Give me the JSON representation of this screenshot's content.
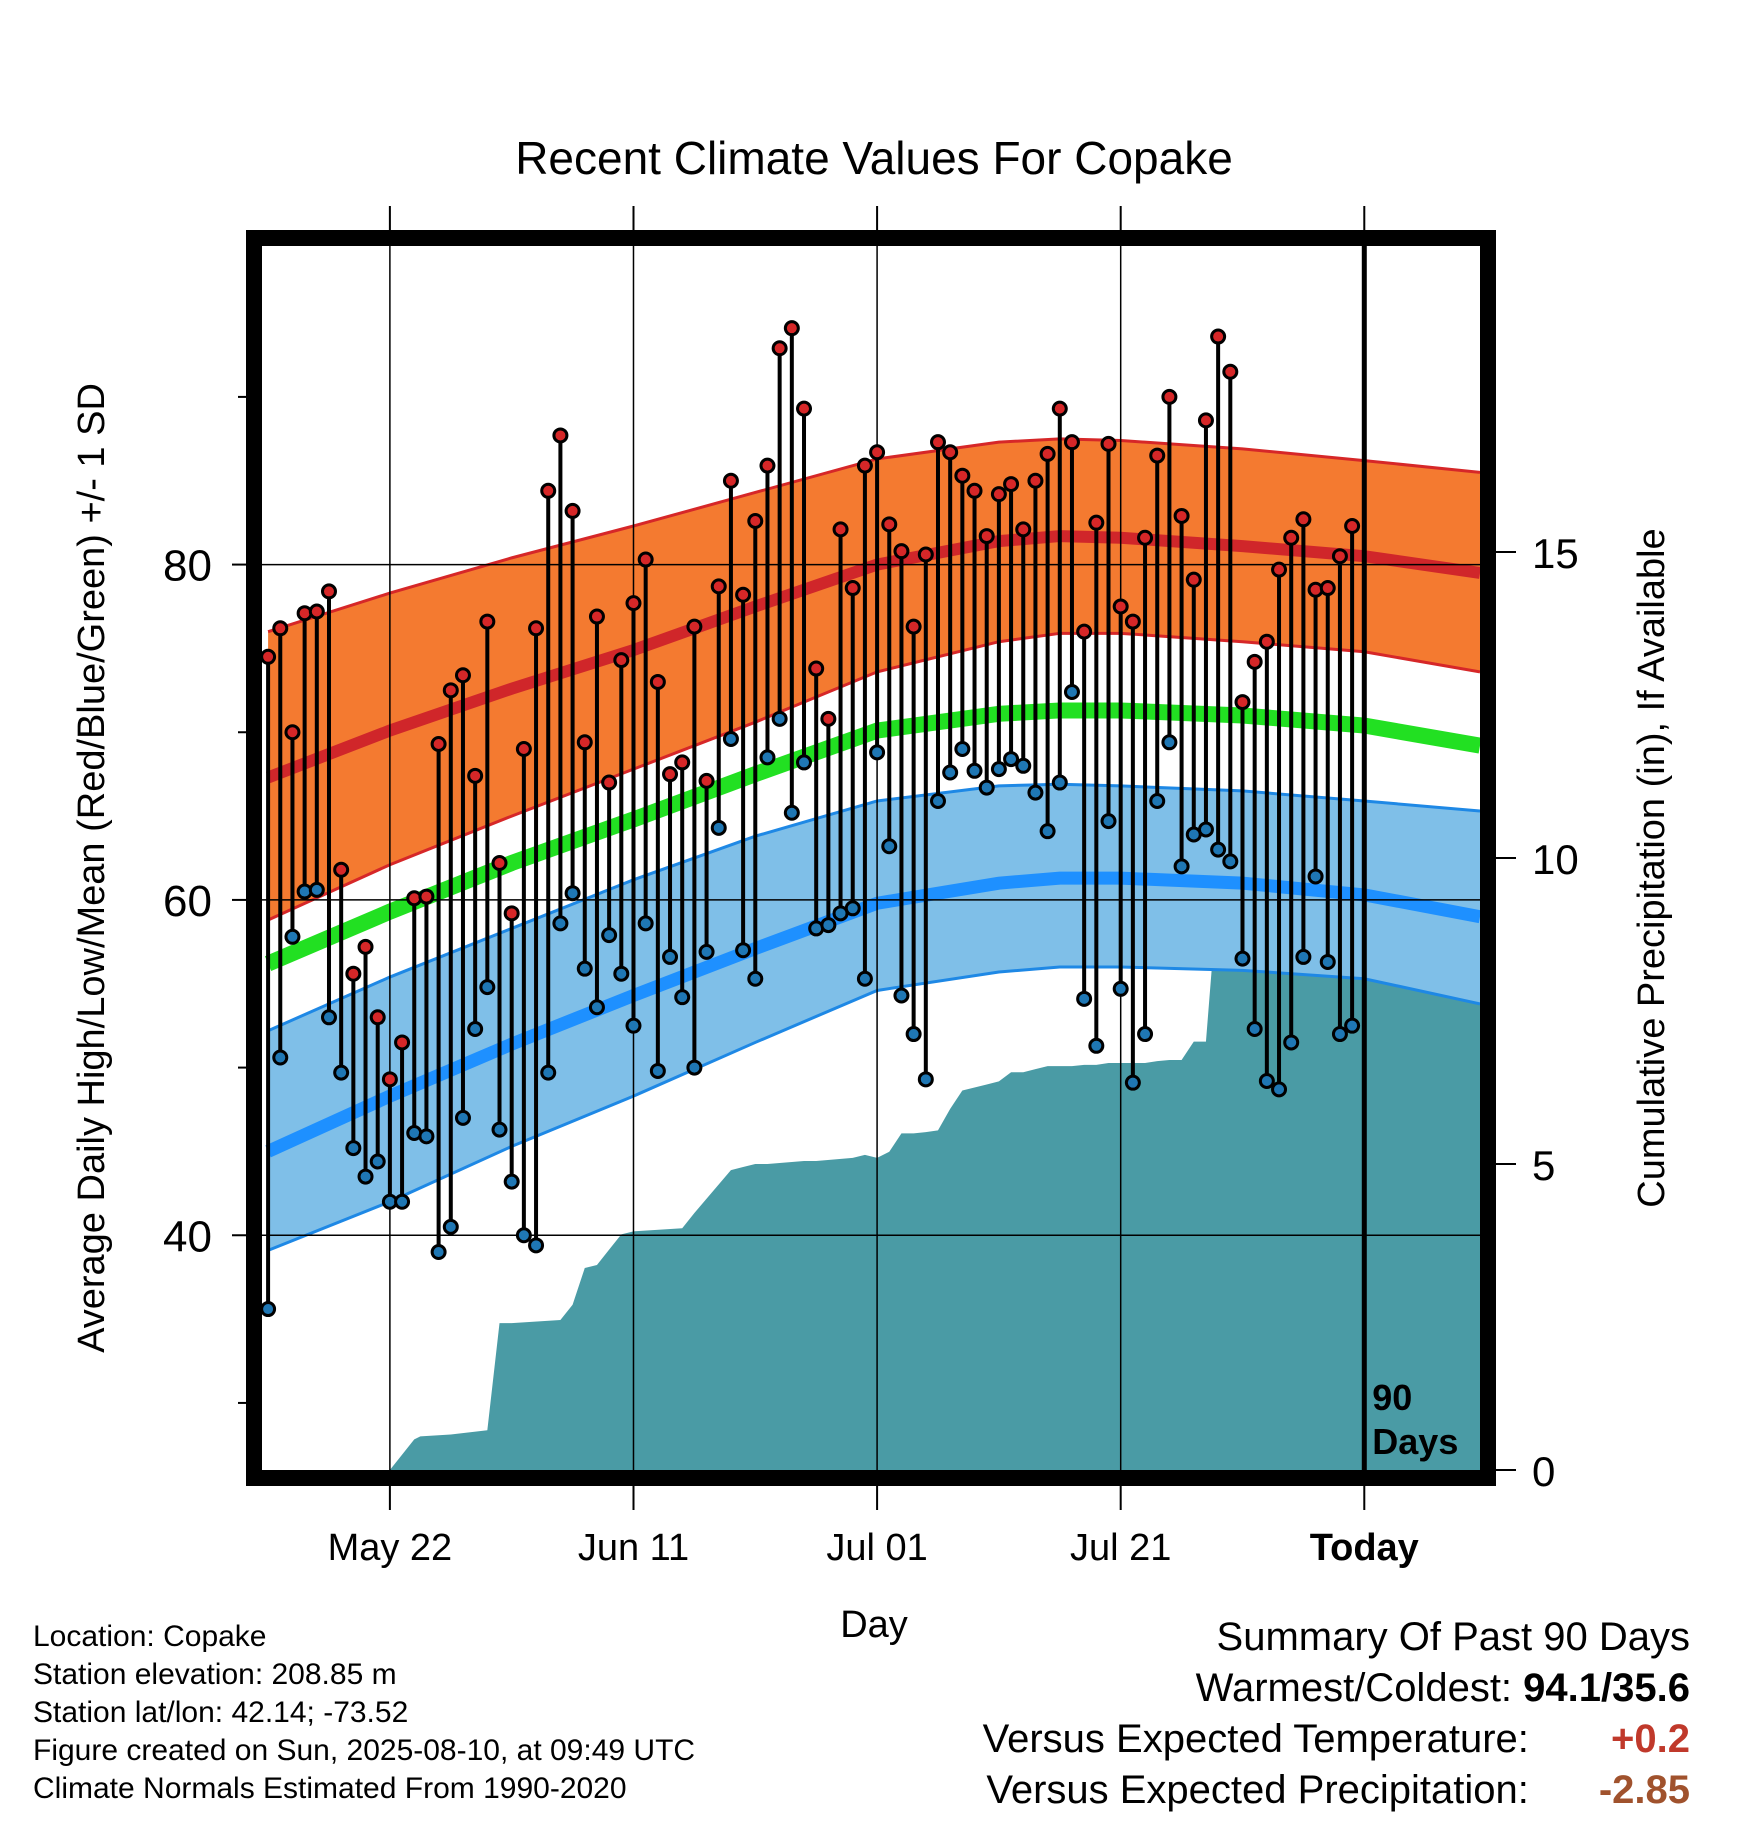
{
  "chart_data": {
    "type": "line",
    "title": "Recent Climate Values For Copake",
    "xlabel": "Day",
    "ylabel": "Average Daily High/Low/Mean (Red/Blue/Green) +/- 1 SD",
    "y2label": "Cumulative Precipitation (in), If Available",
    "xticks": [
      {
        "label": "May 22",
        "day": 10
      },
      {
        "label": "Jun 11",
        "day": 30
      },
      {
        "label": "Jul 01",
        "day": 50
      },
      {
        "label": "Jul 21",
        "day": 70
      },
      {
        "label": "Today",
        "day": 90
      }
    ],
    "today_day": 90,
    "today_note": [
      "90",
      "Days"
    ],
    "x_range": [
      -0.5,
      99.5
    ],
    "ylim": [
      26,
      99
    ],
    "y_ticks": [
      40,
      60,
      80
    ],
    "y2lim": [
      0,
      20
    ],
    "y2_ticks": [
      0,
      5,
      10,
      15
    ],
    "grid": true,
    "normals": {
      "days": [
        0,
        10,
        20,
        30,
        40,
        50,
        60,
        65,
        70,
        80,
        90,
        99.5
      ],
      "high_mean": [
        67.3,
        70.1,
        72.6,
        74.9,
        77.5,
        80.0,
        81.4,
        81.7,
        81.6,
        81.1,
        80.5,
        79.5
      ],
      "high_upper": [
        76.0,
        78.3,
        80.4,
        82.3,
        84.3,
        86.3,
        87.3,
        87.5,
        87.4,
        86.9,
        86.2,
        85.5
      ],
      "high_lower": [
        58.8,
        62.1,
        65.0,
        67.8,
        70.6,
        73.6,
        75.4,
        75.9,
        75.9,
        75.4,
        74.8,
        73.6
      ],
      "mean": [
        56.2,
        59.3,
        62.2,
        64.8,
        67.5,
        70.1,
        71.1,
        71.3,
        71.3,
        71.0,
        70.4,
        69.2
      ],
      "low_mean": [
        45.0,
        48.3,
        51.4,
        54.3,
        57.1,
        59.8,
        61.0,
        61.3,
        61.3,
        61.0,
        60.3,
        59.0
      ],
      "low_upper": [
        52.2,
        55.4,
        58.3,
        61.2,
        63.8,
        65.9,
        66.8,
        66.9,
        66.8,
        66.5,
        65.9,
        65.3
      ],
      "low_lower": [
        39.1,
        42.0,
        45.3,
        48.3,
        51.5,
        54.6,
        55.7,
        56.0,
        56.0,
        55.8,
        55.3,
        53.8
      ]
    },
    "series": [
      {
        "name": "High",
        "color": "#d62728",
        "values": [
          74.5,
          76.2,
          70.0,
          77.1,
          77.2,
          78.4,
          61.8,
          55.6,
          57.2,
          53.0,
          49.3,
          51.5,
          60.1,
          60.2,
          69.3,
          72.5,
          73.4,
          67.4,
          76.6,
          62.2,
          59.2,
          69.0,
          76.2,
          84.4,
          87.7,
          83.2,
          69.4,
          76.9,
          67.0,
          74.3,
          77.7,
          80.3,
          73.0,
          67.5,
          68.2,
          76.3,
          67.1,
          78.7,
          85.0,
          78.2,
          82.6,
          85.9,
          92.9,
          94.1,
          89.3,
          73.8,
          70.8,
          82.1,
          78.6,
          85.9,
          86.7,
          82.4,
          80.8,
          76.3,
          80.6,
          87.3,
          86.7,
          85.3,
          84.4,
          81.7,
          84.2,
          84.8,
          82.1,
          85.0,
          86.6,
          89.3,
          87.3,
          76.0,
          82.5,
          87.2,
          77.5,
          76.6,
          81.6,
          86.5,
          90.0,
          82.9,
          79.1,
          88.6,
          93.6,
          91.5,
          71.8,
          74.2,
          75.4,
          79.7,
          81.6,
          82.7,
          78.5,
          78.6,
          80.5,
          82.3
        ]
      },
      {
        "name": "Low",
        "color": "#1f77b4",
        "values": [
          35.6,
          50.6,
          57.8,
          60.5,
          60.6,
          53.0,
          49.7,
          45.2,
          43.5,
          44.4,
          42.0,
          42.0,
          46.1,
          45.9,
          39.0,
          40.5,
          47.0,
          52.3,
          54.8,
          46.3,
          43.2,
          40.0,
          39.4,
          49.7,
          58.6,
          60.4,
          55.9,
          53.6,
          57.9,
          55.6,
          52.5,
          58.6,
          49.8,
          56.6,
          54.2,
          50.0,
          56.9,
          64.3,
          69.6,
          57.0,
          55.3,
          68.5,
          70.8,
          65.2,
          68.2,
          58.3,
          58.5,
          59.2,
          59.5,
          55.3,
          68.8,
          63.2,
          54.3,
          52.0,
          49.3,
          65.9,
          67.6,
          69.0,
          67.7,
          66.7,
          67.8,
          68.4,
          68.0,
          66.4,
          64.1,
          67.0,
          72.4,
          54.1,
          51.3,
          64.7,
          54.7,
          49.1,
          52.0,
          65.9,
          69.4,
          62.0,
          63.9,
          64.2,
          63.0,
          62.3,
          56.5,
          52.3,
          49.2,
          48.7,
          51.5,
          56.6,
          61.4,
          56.3,
          52.0,
          52.5
        ]
      }
    ],
    "precipitation": {
      "name": "Cumulative Precipitation",
      "color": "#4a9ba5",
      "days": [
        10,
        12,
        12.5,
        15,
        18,
        19,
        20,
        24,
        25,
        26,
        27,
        28,
        29,
        30,
        34,
        35,
        38,
        39,
        40,
        41,
        44,
        45,
        48,
        49,
        50,
        51,
        52,
        53,
        54,
        55,
        56,
        57,
        58,
        59,
        60,
        61,
        62,
        63,
        64,
        65,
        66,
        67,
        68,
        69,
        70,
        71,
        72,
        73,
        74,
        75,
        76,
        77,
        78,
        79,
        80,
        81,
        82,
        83,
        84,
        85,
        86,
        87,
        88,
        89,
        99.5
      ],
      "values": [
        0,
        0.5,
        0.55,
        0.58,
        0.65,
        2.4,
        2.4,
        2.45,
        2.7,
        3.3,
        3.35,
        3.6,
        3.85,
        3.9,
        3.95,
        4.2,
        4.9,
        4.95,
        5.0,
        5.0,
        5.05,
        5.05,
        5.1,
        5.15,
        5.1,
        5.2,
        5.5,
        5.5,
        5.52,
        5.55,
        5.9,
        6.2,
        6.25,
        6.3,
        6.35,
        6.5,
        6.5,
        6.55,
        6.6,
        6.6,
        6.6,
        6.62,
        6.62,
        6.65,
        6.65,
        6.65,
        6.65,
        6.68,
        6.7,
        6.7,
        7.0,
        7.0,
        9.5,
        9.5,
        9.5,
        9.5,
        9.5,
        9.5,
        9.55,
        9.6,
        9.6,
        9.6,
        9.6,
        9.6,
        9.6
      ]
    }
  },
  "footer": {
    "location": "Location: Copake",
    "elevation": "Station elevation: 208.85 m",
    "latlon": "Station lat/lon: 42.14; -73.52",
    "created": "Figure created on Sun, 2025-08-10, at 09:49 UTC",
    "normals_note": "Climate Normals Estimated From 1990-2020"
  },
  "summary": {
    "heading": "Summary Of Past 90 Days",
    "warmest_coldest_label": "Warmest/Coldest:",
    "warmest_coldest_value": "94.1/35.6",
    "temp_label": "Versus Expected Temperature:",
    "temp_value": "+0.2",
    "temp_color": "#c0392b",
    "precip_label": "Versus Expected Precipitation:",
    "precip_value": "-2.85",
    "precip_color": "#a0522d"
  }
}
